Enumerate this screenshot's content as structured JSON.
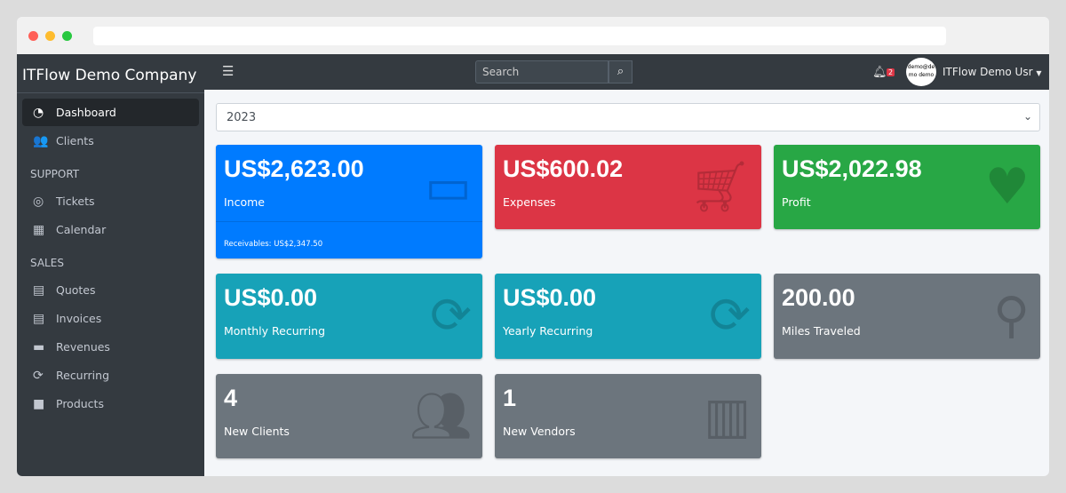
{
  "browser": {
    "url": ""
  },
  "sidebar": {
    "brand": "ITFlow Demo Company",
    "items": [
      {
        "label": "Dashboard",
        "icon": "tachometer-icon"
      },
      {
        "label": "Clients",
        "icon": "users-icon"
      }
    ],
    "support_header": "SUPPORT",
    "support": [
      {
        "label": "Tickets",
        "icon": "life-ring-icon"
      },
      {
        "label": "Calendar",
        "icon": "calendar-icon"
      }
    ],
    "sales_header": "SALES",
    "sales": [
      {
        "label": "Quotes",
        "icon": "file-icon"
      },
      {
        "label": "Invoices",
        "icon": "invoice-icon"
      },
      {
        "label": "Revenues",
        "icon": "credit-card-icon"
      },
      {
        "label": "Recurring",
        "icon": "sync-icon"
      },
      {
        "label": "Products",
        "icon": "box-icon"
      }
    ]
  },
  "topbar": {
    "search_placeholder": "Search",
    "notifications": "2",
    "avatar_text": "demo@demo demo",
    "user": "ITFlow Demo Usr"
  },
  "year_select": "2023",
  "cards": [
    {
      "value": "US$2,623.00",
      "label": "Income",
      "footer": "Receivables: US$2,347.50",
      "color": "#007bff",
      "icon": "credit-card-icon"
    },
    {
      "value": "US$600.02",
      "label": "Expenses",
      "color": "#dc3545",
      "icon": "shopping-cart-icon"
    },
    {
      "value": "US$2,022.98",
      "label": "Profit",
      "color": "#28a745",
      "icon": "heart-icon"
    },
    {
      "value": "US$0.00",
      "label": "Monthly Recurring",
      "color": "#17a2b8",
      "icon": "sync-icon"
    },
    {
      "value": "US$0.00",
      "label": "Yearly Recurring",
      "color": "#17a2b8",
      "icon": "sync-icon"
    },
    {
      "value": "200.00",
      "label": "Miles Traveled",
      "color": "#6c757d",
      "icon": "route-icon"
    },
    {
      "value": "4",
      "label": "New Clients",
      "color": "#6c757d",
      "icon": "users-icon"
    },
    {
      "value": "1",
      "label": "New Vendors",
      "color": "#6c757d",
      "icon": "building-icon"
    }
  ]
}
